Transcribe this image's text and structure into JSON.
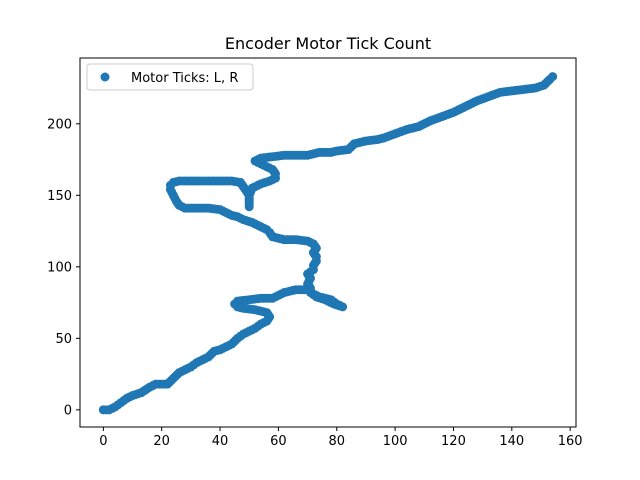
{
  "chart_data": {
    "type": "scatter",
    "title": "Encoder Motor Tick Count",
    "xlabel": "",
    "ylabel": "",
    "xlim": [
      -8,
      162
    ],
    "ylim": [
      -12,
      246
    ],
    "xticks": [
      0,
      20,
      40,
      60,
      80,
      100,
      120,
      140,
      160
    ],
    "yticks": [
      0,
      50,
      100,
      150,
      200
    ],
    "grid": false,
    "legend": {
      "placement": "top-left",
      "entries": [
        "Motor Ticks: L, R"
      ]
    },
    "colors": {
      "series": "#1f77b4",
      "axes": "#000000",
      "background": "#ffffff"
    },
    "series": [
      {
        "name": "Motor Ticks: L, R",
        "points": [
          [
            0,
            0
          ],
          [
            2,
            0
          ],
          [
            4,
            2
          ],
          [
            6,
            5
          ],
          [
            8,
            8
          ],
          [
            10,
            10
          ],
          [
            13,
            12
          ],
          [
            16,
            16
          ],
          [
            18,
            18
          ],
          [
            20,
            18
          ],
          [
            22,
            18
          ],
          [
            24,
            22
          ],
          [
            26,
            26
          ],
          [
            28,
            28
          ],
          [
            30,
            30
          ],
          [
            32,
            33
          ],
          [
            34,
            35
          ],
          [
            36,
            37
          ],
          [
            38,
            41
          ],
          [
            40,
            42
          ],
          [
            42,
            44
          ],
          [
            44,
            46
          ],
          [
            46,
            50
          ],
          [
            48,
            53
          ],
          [
            50,
            55
          ],
          [
            52,
            57
          ],
          [
            54,
            60
          ],
          [
            56,
            62
          ],
          [
            57,
            65
          ],
          [
            56,
            68
          ],
          [
            54,
            69
          ],
          [
            52,
            70
          ],
          [
            48,
            71
          ],
          [
            46,
            72
          ],
          [
            45,
            74
          ],
          [
            46,
            76
          ],
          [
            50,
            77
          ],
          [
            54,
            78
          ],
          [
            58,
            78
          ],
          [
            60,
            80
          ],
          [
            62,
            82
          ],
          [
            64,
            83
          ],
          [
            66,
            84
          ],
          [
            68,
            84
          ],
          [
            70,
            84
          ],
          [
            72,
            81
          ],
          [
            74,
            79
          ],
          [
            76,
            78
          ],
          [
            78,
            77
          ],
          [
            80,
            74
          ],
          [
            82,
            72
          ],
          [
            79,
            74
          ],
          [
            76,
            77
          ],
          [
            73,
            79
          ],
          [
            71,
            82
          ],
          [
            71,
            85
          ],
          [
            70,
            88
          ],
          [
            71,
            92
          ],
          [
            70,
            95
          ],
          [
            72,
            98
          ],
          [
            72,
            101
          ],
          [
            73,
            104
          ],
          [
            73,
            107
          ],
          [
            72,
            110
          ],
          [
            73,
            113
          ],
          [
            72,
            116
          ],
          [
            70,
            118
          ],
          [
            66,
            119
          ],
          [
            62,
            119
          ],
          [
            60,
            120
          ],
          [
            58,
            121
          ],
          [
            57,
            124
          ],
          [
            56,
            126
          ],
          [
            54,
            128
          ],
          [
            51,
            131
          ],
          [
            48,
            133
          ],
          [
            46,
            135
          ],
          [
            44,
            136
          ],
          [
            42,
            138
          ],
          [
            40,
            140
          ],
          [
            36,
            141
          ],
          [
            32,
            141
          ],
          [
            28,
            141
          ],
          [
            26,
            143
          ],
          [
            25,
            146
          ],
          [
            24,
            150
          ],
          [
            23,
            154
          ],
          [
            23,
            157
          ],
          [
            24,
            159
          ],
          [
            26,
            160
          ],
          [
            30,
            160
          ],
          [
            35,
            160
          ],
          [
            40,
            160
          ],
          [
            44,
            160
          ],
          [
            47,
            159
          ],
          [
            48,
            156
          ],
          [
            49,
            153
          ],
          [
            50,
            150
          ],
          [
            50,
            146
          ],
          [
            50,
            142
          ],
          [
            50,
            145
          ],
          [
            50,
            150
          ],
          [
            51,
            155
          ],
          [
            54,
            158
          ],
          [
            57,
            160
          ],
          [
            59,
            162
          ],
          [
            59,
            165
          ],
          [
            58,
            168
          ],
          [
            56,
            170
          ],
          [
            54,
            172
          ],
          [
            52,
            174
          ],
          [
            54,
            176
          ],
          [
            58,
            177
          ],
          [
            62,
            178
          ],
          [
            66,
            178
          ],
          [
            70,
            178
          ],
          [
            74,
            180
          ],
          [
            78,
            180
          ],
          [
            80,
            181
          ],
          [
            84,
            182
          ],
          [
            86,
            186
          ],
          [
            90,
            188
          ],
          [
            94,
            189
          ],
          [
            96,
            190
          ],
          [
            100,
            193
          ],
          [
            104,
            196
          ],
          [
            108,
            198
          ],
          [
            112,
            202
          ],
          [
            116,
            205
          ],
          [
            120,
            208
          ],
          [
            124,
            212
          ],
          [
            128,
            216
          ],
          [
            132,
            219
          ],
          [
            136,
            222
          ],
          [
            140,
            223
          ],
          [
            144,
            224
          ],
          [
            148,
            225
          ],
          [
            151,
            227
          ],
          [
            153,
            231
          ],
          [
            154,
            233
          ]
        ]
      }
    ]
  }
}
